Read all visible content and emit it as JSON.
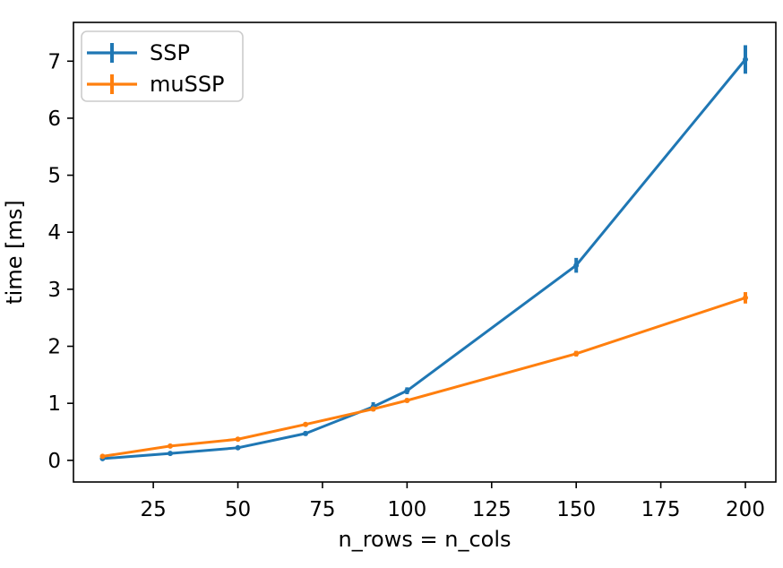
{
  "chart_data": {
    "type": "line",
    "title": "",
    "xlabel": "n_rows = n_cols",
    "ylabel": "time [ms]",
    "x": [
      10,
      30,
      50,
      70,
      90,
      100,
      150,
      200
    ],
    "series": [
      {
        "name": "SSP",
        "color": "#1f77b4",
        "values": [
          0.03,
          0.12,
          0.22,
          0.47,
          0.94,
          1.22,
          3.42,
          7.03
        ],
        "yerr": [
          0.02,
          0.02,
          0.03,
          0.04,
          0.08,
          0.06,
          0.13,
          0.25
        ]
      },
      {
        "name": "muSSP",
        "color": "#ff7f0e",
        "values": [
          0.07,
          0.25,
          0.37,
          0.63,
          0.9,
          1.05,
          1.87,
          2.85
        ],
        "yerr": [
          0.01,
          0.02,
          0.02,
          0.03,
          0.04,
          0.04,
          0.05,
          0.1
        ]
      }
    ],
    "xticks": [
      25,
      50,
      75,
      100,
      125,
      150,
      175,
      200
    ],
    "yticks": [
      0,
      1,
      2,
      3,
      4,
      5,
      6,
      7
    ],
    "xlim": [
      1.4,
      209.0
    ],
    "ylim": [
      -0.38,
      7.68
    ],
    "grid": false,
    "legend": {
      "position": "upper left"
    },
    "colors": {
      "spine": "#000000",
      "tick_text": "#000000",
      "legend_border": "#cccccc",
      "background": "#ffffff"
    }
  }
}
